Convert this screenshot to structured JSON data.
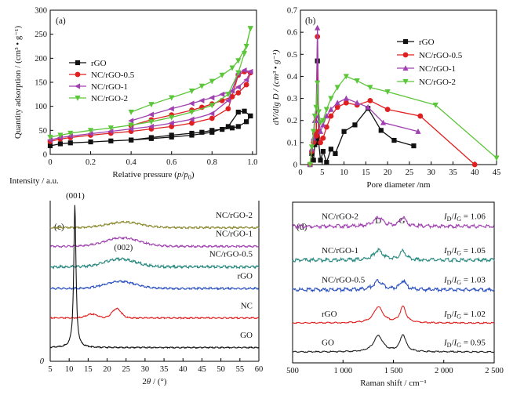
{
  "chart_data": [
    {
      "panel_label": "(a)",
      "type": "line",
      "xlabel": [
        "Relative pressure (",
        "p",
        "/",
        "p",
        "0",
        ")"
      ],
      "ylabel": "Quantity adsorption / (cm³ • g⁻¹)",
      "xlim": [
        0,
        1.02
      ],
      "ylim": [
        0,
        300
      ],
      "x_ticks": [
        "0",
        "0.2",
        "0.4",
        "0.6",
        "0.8",
        "1.0"
      ],
      "y_ticks": [
        "0",
        "50",
        "100",
        "150",
        "200",
        "250",
        "300"
      ],
      "legend_position": "center-left",
      "series": [
        {
          "name": "rGO",
          "color": "#111111",
          "marker": "square",
          "x": [
            0.0,
            0.05,
            0.1,
            0.2,
            0.3,
            0.4,
            0.5,
            0.6,
            0.7,
            0.8,
            0.88,
            0.93,
            0.96,
            0.99,
            0.99,
            0.97,
            0.93,
            0.9,
            0.85,
            0.8,
            0.75,
            0.7,
            0.6,
            0.5,
            0.4
          ],
          "y": [
            18,
            22,
            24,
            26,
            28,
            30,
            33,
            36,
            40,
            46,
            58,
            88,
            90,
            80,
            80,
            68,
            58,
            55,
            52,
            50,
            46,
            44,
            40,
            35,
            30
          ]
        },
        {
          "name": "NC/rGO-0.5",
          "color": "#e02020",
          "marker": "circle",
          "x": [
            0.0,
            0.05,
            0.1,
            0.2,
            0.3,
            0.4,
            0.5,
            0.6,
            0.7,
            0.8,
            0.88,
            0.93,
            0.96,
            0.99,
            0.99,
            0.97,
            0.93,
            0.9,
            0.85,
            0.8,
            0.75,
            0.7,
            0.6,
            0.5,
            0.4
          ],
          "y": [
            27,
            32,
            35,
            40,
            44,
            48,
            53,
            58,
            65,
            75,
            95,
            165,
            172,
            170,
            170,
            145,
            128,
            120,
            112,
            105,
            98,
            92,
            82,
            72,
            60
          ]
        },
        {
          "name": "NC/rGO-1",
          "color": "#a040b0",
          "marker": "triangle-left",
          "x": [
            0.0,
            0.05,
            0.1,
            0.2,
            0.3,
            0.4,
            0.5,
            0.6,
            0.7,
            0.8,
            0.88,
            0.93,
            0.96,
            0.99,
            0.99,
            0.97,
            0.93,
            0.9,
            0.85,
            0.8,
            0.75,
            0.7,
            0.6,
            0.5,
            0.4
          ],
          "y": [
            30,
            35,
            38,
            43,
            48,
            53,
            58,
            65,
            73,
            85,
            112,
            168,
            175,
            172,
            172,
            155,
            140,
            132,
            125,
            118,
            112,
            106,
            95,
            83,
            70
          ]
        },
        {
          "name": "NC/rGO-2",
          "color": "#5cc63a",
          "marker": "triangle-down",
          "x": [
            0.0,
            0.05,
            0.1,
            0.2,
            0.3,
            0.4,
            0.5,
            0.6,
            0.7,
            0.8,
            0.88,
            0.93,
            0.96,
            0.99,
            0.99,
            0.97,
            0.93,
            0.9,
            0.85,
            0.8,
            0.75,
            0.7,
            0.6,
            0.5,
            0.4
          ],
          "y": [
            36,
            40,
            44,
            50,
            55,
            61,
            68,
            77,
            88,
            102,
            125,
            170,
            210,
            262,
            262,
            225,
            195,
            180,
            165,
            152,
            142,
            132,
            118,
            104,
            88
          ]
        }
      ]
    },
    {
      "panel_label": "(b)",
      "type": "line",
      "xlabel": "Pore diameter /nm",
      "ylabel": "dV/dlg D / (cm³ • g⁻¹)",
      "xlim": [
        0,
        45
      ],
      "ylim": [
        0,
        0.7
      ],
      "x_ticks": [
        "0",
        "5",
        "10",
        "15",
        "20",
        "25",
        "30",
        "35",
        "40",
        "45"
      ],
      "y_ticks": [
        "0",
        "0.1",
        "0.2",
        "0.3",
        "0.4",
        "0.5",
        "0.6",
        "0.7"
      ],
      "legend_position": "top-right",
      "series": [
        {
          "name": "rGO",
          "color": "#111111",
          "marker": "square",
          "x": [
            2.2,
            2.6,
            3.0,
            3.3,
            3.6,
            3.9,
            4.2,
            4.6,
            5.2,
            6.0,
            7.0,
            8.0,
            10.0,
            12.5,
            15.5,
            18.5,
            21.5,
            26.0
          ],
          "y": [
            0.0,
            0.05,
            0.02,
            0.09,
            0.12,
            0.47,
            0.1,
            0.02,
            0.06,
            0.01,
            0.07,
            0.05,
            0.15,
            0.18,
            0.255,
            0.155,
            0.11,
            0.085
          ]
        },
        {
          "name": "NC/rGO-0.5",
          "color": "#e02020",
          "marker": "circle",
          "x": [
            2.2,
            2.6,
            3.0,
            3.3,
            3.6,
            3.9,
            4.2,
            4.6,
            5.2,
            6.0,
            7.0,
            8.5,
            10.5,
            13.0,
            16.0,
            20.0,
            27.5,
            40.0
          ],
          "y": [
            0.0,
            0.06,
            0.1,
            0.14,
            0.13,
            0.58,
            0.15,
            0.1,
            0.12,
            0.17,
            0.22,
            0.26,
            0.28,
            0.27,
            0.29,
            0.25,
            0.22,
            0.0
          ]
        },
        {
          "name": "NC/rGO-1",
          "color": "#a040b0",
          "marker": "triangle-up",
          "x": [
            2.2,
            2.6,
            3.0,
            3.3,
            3.6,
            3.9,
            4.2,
            4.6,
            5.2,
            6.0,
            7.0,
            8.5,
            10.5,
            13.0,
            15.5,
            19.0,
            27.0
          ],
          "y": [
            0.0,
            0.07,
            0.12,
            0.2,
            0.22,
            0.62,
            0.2,
            0.15,
            0.18,
            0.22,
            0.25,
            0.28,
            0.3,
            0.28,
            0.26,
            0.19,
            0.15
          ]
        },
        {
          "name": "NC/rGO-2",
          "color": "#5cc63a",
          "marker": "triangle-down",
          "x": [
            2.2,
            2.6,
            3.0,
            3.3,
            3.6,
            3.9,
            4.2,
            4.6,
            5.2,
            6.0,
            7.0,
            8.5,
            10.5,
            13.0,
            16.0,
            20.0,
            31.0,
            45.0
          ],
          "y": [
            0.0,
            0.08,
            0.15,
            0.22,
            0.26,
            0.37,
            0.24,
            0.19,
            0.2,
            0.25,
            0.3,
            0.35,
            0.4,
            0.38,
            0.35,
            0.33,
            0.27,
            0.03
          ]
        }
      ]
    },
    {
      "panel_label": "(c)",
      "type": "line",
      "ylabel": "Intensity / a.u.",
      "xlabel": [
        "2",
        "θ",
        " / (°)"
      ],
      "xlim": [
        5,
        60
      ],
      "x_ticks": [
        "5",
        "10",
        "15",
        "20",
        "25",
        "30",
        "35",
        "40",
        "45",
        "50",
        "55",
        "60"
      ],
      "y_origin_label": "0",
      "annotations": [
        "(001)",
        "(002)"
      ],
      "series": [
        {
          "name": "NC/rGO-2",
          "color": "#8a8a30",
          "baseline": 0.86,
          "peaks": [
            [
              24.5,
              0.035,
              4.5
            ]
          ],
          "noise": 0.006
        },
        {
          "name": "NC/rGO-1",
          "color": "#a040b0",
          "baseline": 0.74,
          "peaks": [
            [
              24.0,
              0.055,
              4.5
            ]
          ],
          "noise": 0.006
        },
        {
          "name": "NC/rGO-0.5",
          "color": "#2a8a80",
          "baseline": 0.61,
          "peaks": [
            [
              23.5,
              0.05,
              4.0
            ]
          ],
          "noise": 0.008
        },
        {
          "name": "rGO",
          "color": "#2a50c0",
          "baseline": 0.47,
          "peaks": [
            [
              23.5,
              0.045,
              4.0
            ]
          ],
          "noise": 0.006
        },
        {
          "name": "NC",
          "color": "#e02020",
          "baseline": 0.28,
          "peaks": [
            [
              22.5,
              0.06,
              1.2
            ],
            [
              16.0,
              0.025,
              1.5
            ]
          ],
          "noise": 0.004
        },
        {
          "name": "GO",
          "color": "#111111",
          "baseline": 0.09,
          "peaks": [
            [
              11.5,
              0.91,
              0.35
            ]
          ],
          "noise": 0.004
        }
      ]
    },
    {
      "panel_label": "(d)",
      "type": "line",
      "xlabel": "Raman shift / cm⁻¹",
      "xlim": [
        500,
        2500
      ],
      "x_ticks": [
        "500",
        "1 000",
        "1 500",
        "2 000",
        "2 500"
      ],
      "annotations": [
        "D",
        "G"
      ],
      "ratio_label_prefix": [
        "I",
        "D",
        "/",
        "I",
        "G"
      ],
      "series": [
        {
          "name": "NC/rGO-2",
          "color": "#a040b0",
          "ratio": "= 1.06",
          "baseline": 0.855,
          "d": 0.055,
          "g": 0.055,
          "noise": 0.011
        },
        {
          "name": "NC/rGO-1",
          "color": "#2a8a80",
          "ratio": "= 1.05",
          "baseline": 0.645,
          "d": 0.06,
          "g": 0.055,
          "noise": 0.011
        },
        {
          "name": "NC/rGO-0.5",
          "color": "#2a50c0",
          "ratio": "= 1.03",
          "baseline": 0.46,
          "d": 0.055,
          "g": 0.055,
          "noise": 0.011
        },
        {
          "name": "rGO",
          "color": "#e02020",
          "ratio": "= 1.02",
          "baseline": 0.25,
          "d": 0.1,
          "g": 0.1,
          "noise": 0.004
        },
        {
          "name": "GO",
          "color": "#222222",
          "ratio": "= 0.95",
          "baseline": 0.07,
          "d": 0.1,
          "g": 0.105,
          "noise": 0.004
        }
      ]
    }
  ]
}
